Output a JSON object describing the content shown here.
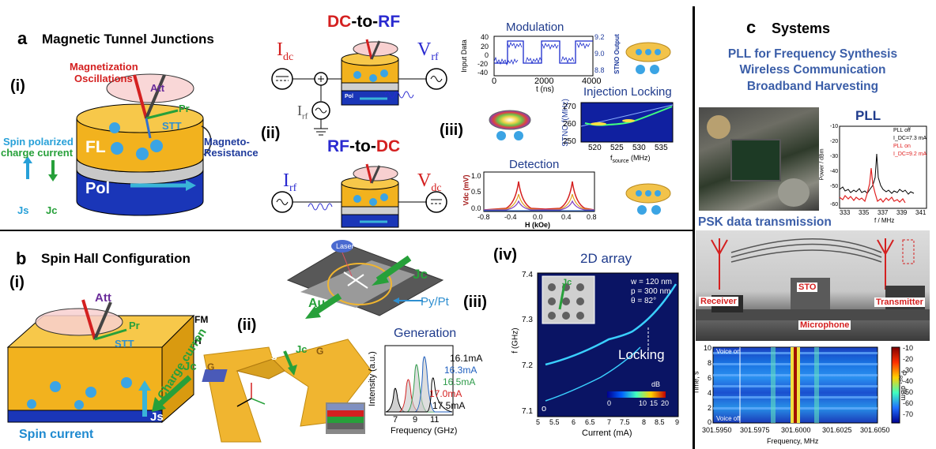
{
  "panel_a": {
    "letter": "a",
    "title": "Magnetic Tunnel Junctions",
    "sub_i": "(i)",
    "sub_ii": "(ii)",
    "sub_iii": "(iii)",
    "magnetization_oscillations_1": "Magnetization",
    "magnetization_oscillations_2": "Oscillations",
    "att": "Att",
    "pr": "Pr",
    "stt": "STT",
    "fl": "FL",
    "pol": "Pol",
    "magneto_resistance_1": "Magneto-",
    "magneto_resistance_2": "Resistance",
    "spin_polarized_1": "Spin polarized",
    "spin_polarized_2": "charge current",
    "js": "Js",
    "jc": "Jc",
    "dc_to_rf_dc": "DC",
    "dc_to_rf_to": "-to-",
    "dc_to_rf_rf": "RF",
    "rf_to_dc_rf": "RF",
    "rf_to_dc_to": "-to-",
    "rf_to_dc_dc": "DC",
    "i_dc": "I",
    "i_dc_sub": "dc",
    "v_rf": "V",
    "v_rf_sub": "rf",
    "i_rf": "I",
    "i_rf_sub": "rf",
    "v_dc": "V",
    "v_dc_sub": "dc",
    "pol_small": "Pol"
  },
  "modulation": {
    "title": "Modulation",
    "ylabel_left": "Input Data",
    "ylabel_right": "STNO Output",
    "xlabel": "t (ns)",
    "x_ticks": [
      "0",
      "2000",
      "4000"
    ],
    "y_ticks_left": [
      "40",
      "20",
      "0",
      "-20",
      "-40"
    ],
    "y_ticks_right": [
      "9.2",
      "9.0",
      "8.8"
    ]
  },
  "injection_locking": {
    "title": "Injection Locking",
    "ylabel": "f(MHz)",
    "ylabel_prefix": "STNO",
    "xlabel": "f",
    "xlabel_sub": "source",
    "xlabel_unit": "(MHz)",
    "x_ticks": [
      "520",
      "525",
      "530",
      "535"
    ],
    "y_ticks": [
      "270",
      "260",
      "250"
    ]
  },
  "detection": {
    "title": "Detection",
    "ylabel": "Vdc (mV)",
    "xlabel": "H (kOe)",
    "x_ticks": [
      "-0.8",
      "-0.4",
      "0.0",
      "0.4",
      "0.8"
    ],
    "y_ticks": [
      "1.0",
      "0.5",
      "0.0"
    ]
  },
  "panel_b": {
    "letter": "b",
    "title": "Spin Hall Configuration",
    "sub_i": "(i)",
    "sub_ii": "(ii)",
    "sub_iii": "(iii)",
    "sub_iv": "(iv)",
    "att": "Att",
    "pr": "Pr",
    "stt": "STT",
    "fm": "FM",
    "h": "H",
    "jc": "Jc",
    "js": "Js",
    "spin_current": "Spin current",
    "charge_current": "Charge curren",
    "laser": "Laser",
    "jc2": "Jc",
    "au": "Au",
    "py_pt": "Py/Pt",
    "jc3": "Jc",
    "g1": "G",
    "s": "S",
    "g2": "G"
  },
  "generation": {
    "title": "Generation",
    "ylabel": "Intensity (a.u.)",
    "xlabel": "Frequency (GHz)",
    "x_ticks": [
      "7",
      "9",
      "11"
    ],
    "labels": [
      {
        "text": "16.1mA",
        "color": "#000000"
      },
      {
        "text": "16.3mA",
        "color": "#1f5fbf"
      },
      {
        "text": "16.5mA",
        "color": "#2e9b4a"
      },
      {
        "text": "17.0mA",
        "color": "#d62728"
      },
      {
        "text": "17.5mA",
        "color": "#000000"
      }
    ]
  },
  "array2d": {
    "title": "2D array",
    "ylabel": "f (GHz)",
    "xlabel": "Current (mA)",
    "x_ticks": [
      "5",
      "5.5",
      "6",
      "6.5",
      "7",
      "7.5",
      "8",
      "8.5",
      "9"
    ],
    "y_ticks": [
      "7.4",
      "7.3",
      "7.2",
      "7.1"
    ],
    "inset_jc": "Jc",
    "w": "w = 120 nm",
    "p": "p = 300 nm",
    "theta": "θ = 82°",
    "locking": "Locking",
    "cbar_label": "dB",
    "cbar_ticks": [
      "0",
      "10",
      "15",
      "20"
    ],
    "corner": "o"
  },
  "panel_c": {
    "letter": "c",
    "title": "Systems",
    "line1": "PLL for Frequency Synthesis",
    "line2": "Wireless Communication",
    "line3": "Broadband Harvesting",
    "pll": "PLL",
    "psk": "PSK data transmission",
    "receiver": "Receiver",
    "sto": "STO",
    "transmitter": "Transmitter",
    "microphone": "Microphone"
  },
  "pll_chart": {
    "ylabel": "Power / dBm",
    "xlabel": "f / MHz",
    "x_ticks": [
      "333",
      "335",
      "337",
      "339",
      "341"
    ],
    "y_ticks": [
      "-10",
      "-15",
      "-20",
      "-25",
      "-30",
      "-35",
      "-40",
      "-45",
      "-50",
      "-55",
      "-60"
    ],
    "legend": [
      {
        "text": "PLL off",
        "color": "#000000"
      },
      {
        "text": "I_DC=7.3 mA",
        "color": "#000000"
      },
      {
        "text": "PLL on",
        "color": "#e02020"
      },
      {
        "text": "I_DC=9.2 mA",
        "color": "#e02020"
      }
    ]
  },
  "spectrogram": {
    "ylabel": "Time, s",
    "xlabel": "Frequency, MHz",
    "x_ticks": [
      "301.5950",
      "301.5975",
      "301.6000",
      "301.6025",
      "301.6050"
    ],
    "y_ticks": [
      "10",
      "8",
      "6",
      "4",
      "2",
      "0"
    ],
    "voice_on": "Voice on",
    "voice_off": "Voice off",
    "cbar_label": "P",
    "cbar_label_sub": "RF",
    "cbar_label_unit": ", dBm",
    "cbar_ticks": [
      "-10",
      "-20",
      "-30",
      "-40",
      "-50",
      "-60",
      "-70"
    ]
  }
}
